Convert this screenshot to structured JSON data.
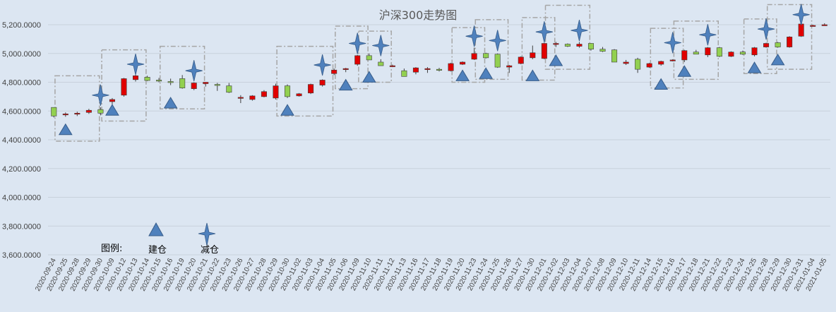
{
  "chart_data": {
    "type": "candlestick",
    "title": "沪深300走势图",
    "xlabel": "",
    "ylabel": "",
    "ylim": [
      3600,
      5400
    ],
    "yticks": [
      "3,600.0000",
      "3,800.0000",
      "4,000.0000",
      "4,200.0000",
      "4,400.0000",
      "4,600.0000",
      "4,800.0000",
      "5,000.0000",
      "5,200.0000"
    ],
    "grid": true,
    "colors": {
      "up": "#e00000",
      "down": "#92d050",
      "marker": "#4f81bd",
      "box": "#a6a6a6",
      "background": "#dce6f2"
    },
    "legend": {
      "title": "图例:",
      "items": [
        {
          "label": "建仓",
          "icon": "triangle-icon"
        },
        {
          "label": "减仓",
          "icon": "star-icon"
        }
      ]
    },
    "categories": [
      "2020-09-24",
      "2020-09-25",
      "2020-09-28",
      "2020-09-29",
      "2020-09-30",
      "2020-10-09",
      "2020-10-12",
      "2020-10-13",
      "2020-10-14",
      "2020-10-15",
      "2020-10-16",
      "2020-10-19",
      "2020-10-20",
      "2020-10-21",
      "2020-10-22",
      "2020-10-23",
      "2020-10-26",
      "2020-10-27",
      "2020-10-28",
      "2020-10-29",
      "2020-10-30",
      "2020-11-02",
      "2020-11-03",
      "2020-11-04",
      "2020-11-05",
      "2020-11-06",
      "2020-11-09",
      "2020-11-10",
      "2020-11-11",
      "2020-11-12",
      "2020-11-13",
      "2020-11-16",
      "2020-11-17",
      "2020-11-18",
      "2020-11-19",
      "2020-11-20",
      "2020-11-23",
      "2020-11-24",
      "2020-11-25",
      "2020-11-26",
      "2020-11-27",
      "2020-11-30",
      "2020-12-01",
      "2020-12-02",
      "2020-12-03",
      "2020-12-04",
      "2020-12-07",
      "2020-12-08",
      "2020-12-09",
      "2020-12-10",
      "2020-12-11",
      "2020-12-14",
      "2020-12-15",
      "2020-12-16",
      "2020-12-17",
      "2020-12-18",
      "2020-12-21",
      "2020-12-22",
      "2020-12-23",
      "2020-12-24",
      "2020-12-25",
      "2020-12-28",
      "2020-12-29",
      "2020-12-30",
      "2020-12-31",
      "2021-01-04",
      "2021-01-05"
    ],
    "ohlc": [
      [
        4625,
        4625,
        4555,
        4565
      ],
      [
        4575,
        4590,
        4560,
        4580
      ],
      [
        4580,
        4595,
        4565,
        4585
      ],
      [
        4590,
        4615,
        4580,
        4605
      ],
      [
        4610,
        4625,
        4570,
        4585
      ],
      [
        4665,
        4690,
        4645,
        4680
      ],
      [
        4710,
        4830,
        4700,
        4825
      ],
      [
        4818,
        4855,
        4805,
        4845
      ],
      [
        4835,
        4845,
        4808,
        4812
      ],
      [
        4815,
        4830,
        4800,
        4810
      ],
      [
        4805,
        4825,
        4780,
        4800
      ],
      [
        4825,
        4850,
        4755,
        4760
      ],
      [
        4755,
        4800,
        4745,
        4795
      ],
      [
        4790,
        4800,
        4770,
        4800
      ],
      [
        4785,
        4795,
        4740,
        4780
      ],
      [
        4775,
        4795,
        4725,
        4730
      ],
      [
        4690,
        4710,
        4655,
        4695
      ],
      [
        4680,
        4710,
        4672,
        4705
      ],
      [
        4700,
        4745,
        4695,
        4735
      ],
      [
        4690,
        4790,
        4680,
        4775
      ],
      [
        4775,
        4785,
        4690,
        4700
      ],
      [
        4705,
        4725,
        4700,
        4720
      ],
      [
        4725,
        4790,
        4718,
        4785
      ],
      [
        4780,
        4820,
        4770,
        4815
      ],
      [
        4860,
        4895,
        4850,
        4885
      ],
      [
        4888,
        4900,
        4870,
        4895
      ],
      [
        4925,
        4990,
        4915,
        4985
      ],
      [
        4985,
        5000,
        4955,
        4955
      ],
      [
        4940,
        4960,
        4915,
        4915
      ],
      [
        4910,
        4922,
        4905,
        4915
      ],
      [
        4880,
        4895,
        4840,
        4840
      ],
      [
        4870,
        4905,
        4855,
        4900
      ],
      [
        4895,
        4905,
        4865,
        4895
      ],
      [
        4890,
        4900,
        4875,
        4885
      ],
      [
        4880,
        4935,
        4875,
        4930
      ],
      [
        4925,
        4945,
        4920,
        4940
      ],
      [
        4960,
        5040,
        4955,
        5000
      ],
      [
        5000,
        5005,
        4965,
        4970
      ],
      [
        4995,
        5000,
        4900,
        4905
      ],
      [
        4905,
        4920,
        4865,
        4915
      ],
      [
        4930,
        4980,
        4925,
        4975
      ],
      [
        4970,
        5055,
        4960,
        5005
      ],
      [
        4965,
        5075,
        4960,
        5070
      ],
      [
        5065,
        5080,
        5045,
        5070
      ],
      [
        5065,
        5070,
        5045,
        5050
      ],
      [
        5050,
        5080,
        5040,
        5065
      ],
      [
        5070,
        5072,
        5020,
        5030
      ],
      [
        5030,
        5045,
        5010,
        5015
      ],
      [
        5025,
        5030,
        4940,
        4940
      ],
      [
        4930,
        4955,
        4920,
        4940
      ],
      [
        4960,
        4970,
        4865,
        4890
      ],
      [
        4905,
        4935,
        4900,
        4930
      ],
      [
        4925,
        4950,
        4915,
        4945
      ],
      [
        4950,
        4960,
        4945,
        4955
      ],
      [
        4955,
        5025,
        4940,
        5020
      ],
      [
        5010,
        5025,
        4995,
        4995
      ],
      [
        4990,
        5045,
        4975,
        5040
      ],
      [
        5040,
        5045,
        4975,
        4980
      ],
      [
        4980,
        5015,
        4975,
        5010
      ],
      [
        5010,
        5020,
        4990,
        4995
      ],
      [
        4990,
        5045,
        4980,
        5040
      ],
      [
        5045,
        5075,
        5040,
        5070
      ],
      [
        5075,
        5080,
        5040,
        5045
      ],
      [
        5045,
        5120,
        5040,
        5115
      ],
      [
        5120,
        5210,
        5115,
        5205
      ],
      [
        5195,
        5200,
        5190,
        5195
      ],
      [
        5200,
        5210,
        5195,
        5200
      ]
    ],
    "build_markers": [
      {
        "category": "2020-09-25",
        "value": 4470
      },
      {
        "category": "2020-10-09",
        "value": 4605
      },
      {
        "category": "2020-10-16",
        "value": 4655
      },
      {
        "category": "2020-10-30",
        "value": 4605
      },
      {
        "category": "2020-11-06",
        "value": 4780
      },
      {
        "category": "2020-11-10",
        "value": 4835
      },
      {
        "category": "2020-11-20",
        "value": 4845
      },
      {
        "category": "2020-11-24",
        "value": 4860
      },
      {
        "category": "2020-11-30",
        "value": 4845
      },
      {
        "category": "2020-12-02",
        "value": 4950
      },
      {
        "category": "2020-12-15",
        "value": 4785
      },
      {
        "category": "2020-12-17",
        "value": 4875
      },
      {
        "category": "2020-12-25",
        "value": 4900
      },
      {
        "category": "2020-12-29",
        "value": 4955
      }
    ],
    "reduce_markers": [
      {
        "category": "2020-09-30",
        "value": 4710
      },
      {
        "category": "2020-10-13",
        "value": 4925
      },
      {
        "category": "2020-10-20",
        "value": 4880
      },
      {
        "category": "2020-11-04",
        "value": 4920
      },
      {
        "category": "2020-11-09",
        "value": 5070
      },
      {
        "category": "2020-11-11",
        "value": 5055
      },
      {
        "category": "2020-11-23",
        "value": 5120
      },
      {
        "category": "2020-11-25",
        "value": 5090
      },
      {
        "category": "2020-12-01",
        "value": 5150
      },
      {
        "category": "2020-12-04",
        "value": 5160
      },
      {
        "category": "2020-12-16",
        "value": 5075
      },
      {
        "category": "2020-12-21",
        "value": 5130
      },
      {
        "category": "2020-12-28",
        "value": 5170
      },
      {
        "category": "2020-12-31",
        "value": 5270
      }
    ],
    "boxes": [
      {
        "from": "2020-09-25",
        "to": "2020-09-29",
        "low": 4390,
        "high": 4845
      },
      {
        "from": "2020-10-09",
        "to": "2020-10-13",
        "low": 4530,
        "high": 5025
      },
      {
        "from": "2020-10-16",
        "to": "2020-10-20",
        "low": 4615,
        "high": 5050
      },
      {
        "from": "2020-10-30",
        "to": "2020-11-04",
        "low": 4565,
        "high": 5050
      },
      {
        "from": "2020-11-06",
        "to": "2020-11-09",
        "low": 4755,
        "high": 5190
      },
      {
        "from": "2020-11-10",
        "to": "2020-11-11",
        "low": 4800,
        "high": 5155
      },
      {
        "from": "2020-11-20",
        "to": "2020-11-23",
        "low": 4800,
        "high": 5180
      },
      {
        "from": "2020-11-24",
        "to": "2020-11-25",
        "low": 4820,
        "high": 5235
      },
      {
        "from": "2020-11-30",
        "to": "2020-12-01",
        "low": 4815,
        "high": 5250
      },
      {
        "from": "2020-12-02",
        "to": "2020-12-04",
        "low": 4890,
        "high": 5335
      },
      {
        "from": "2020-12-15",
        "to": "2020-12-16",
        "low": 4760,
        "high": 5175
      },
      {
        "from": "2020-12-17",
        "to": "2020-12-21",
        "low": 4820,
        "high": 5225
      },
      {
        "from": "2020-12-25",
        "to": "2020-12-28",
        "low": 4860,
        "high": 5240
      },
      {
        "from": "2020-12-29",
        "to": "2020-12-31",
        "low": 4890,
        "high": 5340
      }
    ]
  }
}
